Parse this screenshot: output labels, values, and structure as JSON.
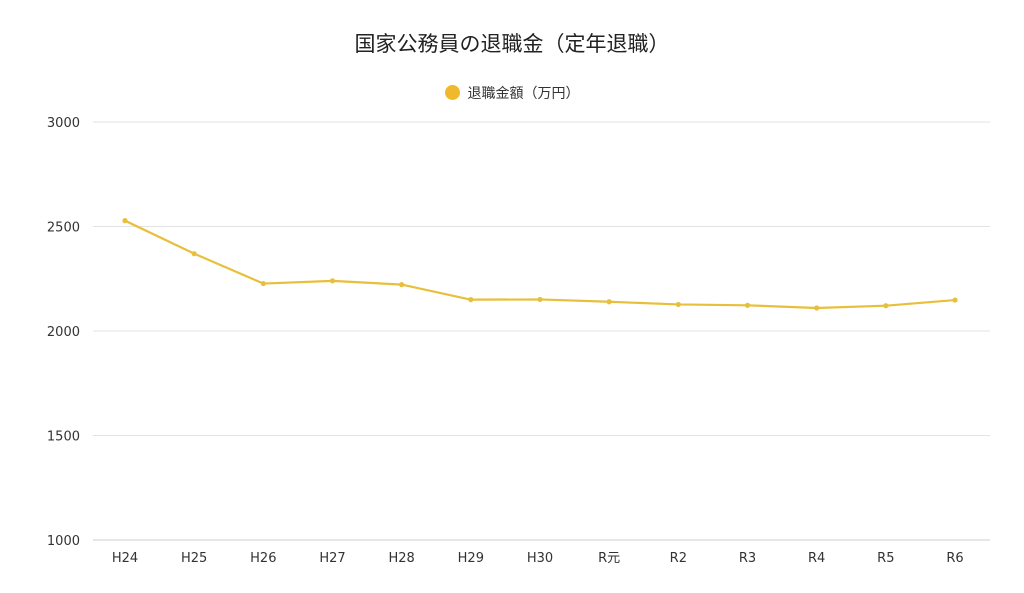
{
  "chart_data": {
    "type": "line",
    "title": "国家公務員の退職金（定年退職）",
    "xlabel": "",
    "ylabel": "",
    "categories": [
      "H24",
      "H25",
      "H26",
      "H27",
      "H28",
      "H29",
      "H30",
      "R元",
      "R2",
      "R3",
      "R4",
      "R5",
      "R6"
    ],
    "series": [
      {
        "name": "退職金額（万円）",
        "color": "#e8bf3a",
        "values": [
          2528,
          2370,
          2227,
          2240,
          2222,
          2150,
          2151,
          2140,
          2127,
          2123,
          2110,
          2121,
          2148
        ]
      }
    ],
    "ylim": [
      1000,
      3000
    ],
    "yticks": [
      1000,
      1500,
      2000,
      2500,
      3000
    ],
    "grid": true,
    "legend": "top-center"
  }
}
